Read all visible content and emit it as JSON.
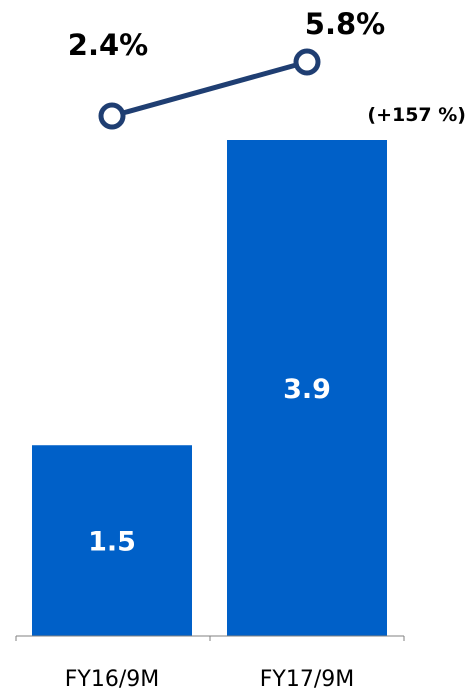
{
  "chart_data": {
    "type": "bar",
    "categories": [
      "FY16/9M",
      "FY17/9M"
    ],
    "values": [
      1.5,
      3.9
    ],
    "value_labels": [
      "1.5",
      "3.9"
    ],
    "ylim": [
      0,
      3.9
    ],
    "grid": false,
    "line_overlay": {
      "values": [
        2.4,
        5.8
      ],
      "labels": [
        "2.4%",
        "5.8%"
      ]
    },
    "annotations": [
      {
        "text": "(+157 %)",
        "category": "FY17/9M"
      }
    ],
    "colors": {
      "bar": "#0060c8",
      "line": "#1f3e72",
      "marker_fill": "#ffffff",
      "axis": "#808080"
    }
  }
}
